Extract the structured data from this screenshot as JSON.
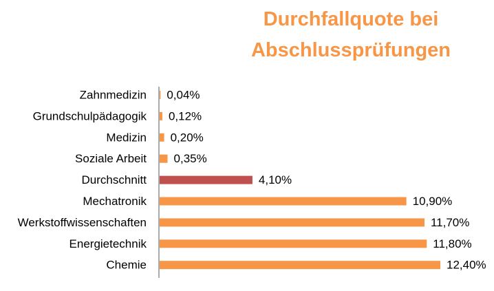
{
  "chart_data": {
    "type": "bar",
    "orientation": "horizontal",
    "title_lines": [
      "Durchfallquote bei",
      "Abschlussprüfungen"
    ],
    "categories": [
      "Zahnmedizin",
      "Grundschulpädagogik",
      "Medizin",
      "Soziale Arbeit",
      "Durchschnitt",
      "Mechatronik",
      "Werkstoffwissenschaften",
      "Energietechnik",
      "Chemie"
    ],
    "values": [
      0.04,
      0.12,
      0.2,
      0.35,
      4.1,
      10.9,
      11.7,
      11.8,
      12.4
    ],
    "data_labels": [
      "0,04%",
      "0,12%",
      "0,20%",
      "0,35%",
      "4,10%",
      "10,90%",
      "11,70%",
      "11,80%",
      "12,40%"
    ],
    "xlim": [
      0,
      12.4
    ],
    "grid": false,
    "legend": "none",
    "colors": {
      "default": "#F79646",
      "highlight": "#C0504D",
      "title": "#F79646",
      "axis": "#808080",
      "text": "#000000"
    },
    "highlight_category": "Durchschnitt"
  }
}
